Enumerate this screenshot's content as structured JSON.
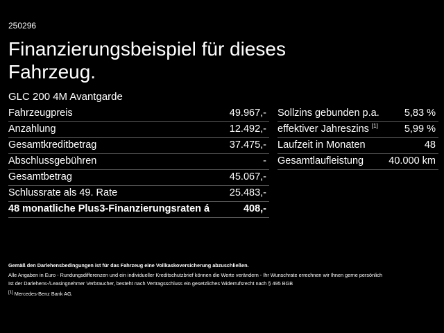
{
  "header": {
    "code": "250296",
    "title_lines": [
      "Finanzierungsbeispiel für dieses",
      "Fahrzeug."
    ],
    "model": "GLC 200 4M Avantgarde"
  },
  "left_table": {
    "rows": [
      [
        "Fahrzeugpreis",
        "49.967,-"
      ],
      [
        "Anzahlung",
        "12.492,-"
      ],
      [
        "Gesamtkreditbetrag",
        "37.475,-"
      ],
      [
        "Abschlussgebühren",
        "-"
      ],
      [
        "Gesamtbetrag",
        "45.067,-"
      ],
      [
        "Schlussrate als 49. Rate",
        "25.483,-"
      ],
      [
        "48 monatliche Plus3-Finanzierungsraten á",
        "408,-"
      ]
    ]
  },
  "right_table": {
    "rows": [
      [
        "Sollzins gebunden p.a.",
        "5,83 %"
      ],
      [
        "effektiver Jahreszins",
        "5,99 %"
      ],
      [
        "Laufzeit in Monaten",
        "48"
      ],
      [
        "Gesamtlaufleistung",
        "40.000 km"
      ]
    ],
    "footnote_ref": "[1]"
  },
  "notes": {
    "bold": "Gemäß den Darlehensbedingungen ist für das Fahrzeug eine Vollkaskoversicherung abzuschließen.",
    "lines": [
      "Alle Angaben in Euro - Rundungsdifferenzen und ein individueller Kreditschutzbrief können die Werte verändern - Ihr Wunschrate errechnen wir Ihnen gerne persönlich",
      "Ist der Darlehens-/Leasingnehmer Verbraucher, besteht nach Vertragsschluss ein gesetzliches Widerrufsrecht nach § 495 BGB"
    ],
    "ref": "[1]",
    "source": "Mercedes-Benz Bank AG."
  }
}
